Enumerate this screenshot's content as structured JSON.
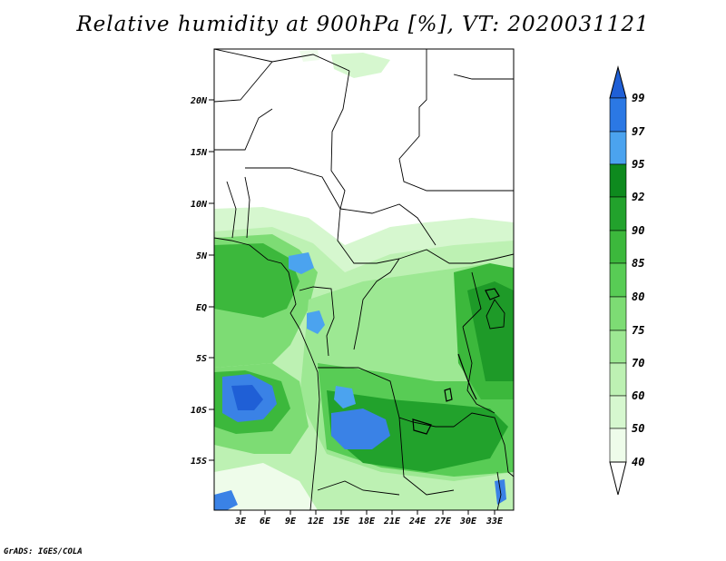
{
  "title": "Relative humidity at 900hPa [%], VT: 2020031121",
  "credit": "GrADS: IGES/COLA",
  "lat_ticks": [
    "20N",
    "15N",
    "10N",
    "5N",
    "EQ",
    "5S",
    "10S",
    "15S"
  ],
  "lon_ticks": [
    "3E",
    "6E",
    "9E",
    "12E",
    "15E",
    "18E",
    "21E",
    "24E",
    "27E",
    "30E",
    "33E"
  ],
  "colorbar": {
    "labels": [
      "99",
      "97",
      "95",
      "92",
      "90",
      "85",
      "80",
      "75",
      "70",
      "60",
      "50",
      "40"
    ],
    "colors": [
      "#1f5fd6",
      "#2b78e4",
      "#4ba3ef",
      "#0e8a1e",
      "#22a22c",
      "#3cb83c",
      "#58cc55",
      "#7ddc74",
      "#9de893",
      "#bdf1b3",
      "#d6f7cf",
      "#eefcea",
      "#ffffff"
    ]
  },
  "colors": {
    "ocean_blue": "#3a82e6",
    "deep_green": "#1e9a28"
  }
}
